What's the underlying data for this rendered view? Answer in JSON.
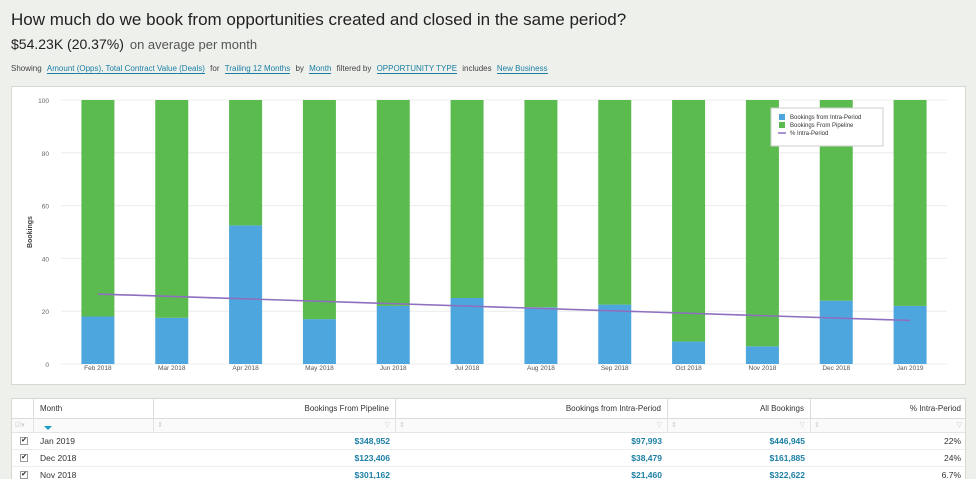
{
  "header": {
    "title": "How much do we book from opportunities created and closed in the same period?",
    "summary_value": "$54.23K (20.37%)",
    "summary_text": "on average per month"
  },
  "showing": {
    "prefix": "Showing",
    "metrics": "Amount (Opps), Total Contract Value (Deals)",
    "for": "for",
    "range": "Trailing 12 Months",
    "by": "by",
    "group": "Month",
    "filtered_by": "filtered by",
    "filter_field": "OPPORTUNITY TYPE",
    "includes": "includes",
    "filter_value": "New Business"
  },
  "colors": {
    "intra": "#4ea6de",
    "pipeline": "#5cbb4f",
    "trend": "#8e6fbf",
    "link": "#1b7fa5"
  },
  "chart_data": {
    "type": "bar",
    "stacked": true,
    "ylabel": "Bookings",
    "ylim": [
      0,
      100
    ],
    "yticks": [
      0,
      20,
      40,
      60,
      80,
      100
    ],
    "categories": [
      "Feb 2018",
      "Mar 2018",
      "Apr 2018",
      "May 2018",
      "Jun 2018",
      "Jul 2018",
      "Aug 2018",
      "Sep 2018",
      "Oct 2018",
      "Nov 2018",
      "Dec 2018",
      "Jan 2019"
    ],
    "series": [
      {
        "name": "Bookings from Intra-Period",
        "values": [
          18,
          17.5,
          52.5,
          17,
          22,
          25,
          21.5,
          22.5,
          8.5,
          6.7,
          24,
          22
        ]
      },
      {
        "name": "Bookings From Pipeline",
        "values": [
          82,
          82.5,
          47.5,
          83,
          78,
          75,
          78.5,
          77.5,
          91.5,
          93.3,
          76,
          78
        ]
      }
    ],
    "trend": {
      "name": "% Intra-Period",
      "start": 26.5,
      "end": 16.5
    },
    "legend": [
      "Bookings from Intra-Period",
      "Bookings From Pipeline",
      "% Intra-Period"
    ],
    "legend_position": "top-right"
  },
  "table": {
    "columns": [
      "Month",
      "Bookings From Pipeline",
      "Bookings from Intra-Period",
      "All Bookings",
      "% Intra-Period"
    ],
    "rows": [
      {
        "month": "Jan 2019",
        "pipeline": "$348,952",
        "intra": "$97,993",
        "all": "$446,945",
        "pct": "22%"
      },
      {
        "month": "Dec 2018",
        "pipeline": "$123,406",
        "intra": "$38,479",
        "all": "$161,885",
        "pct": "24%"
      },
      {
        "month": "Nov 2018",
        "pipeline": "$301,162",
        "intra": "$21,460",
        "all": "$322,622",
        "pct": "6.7%"
      }
    ]
  }
}
